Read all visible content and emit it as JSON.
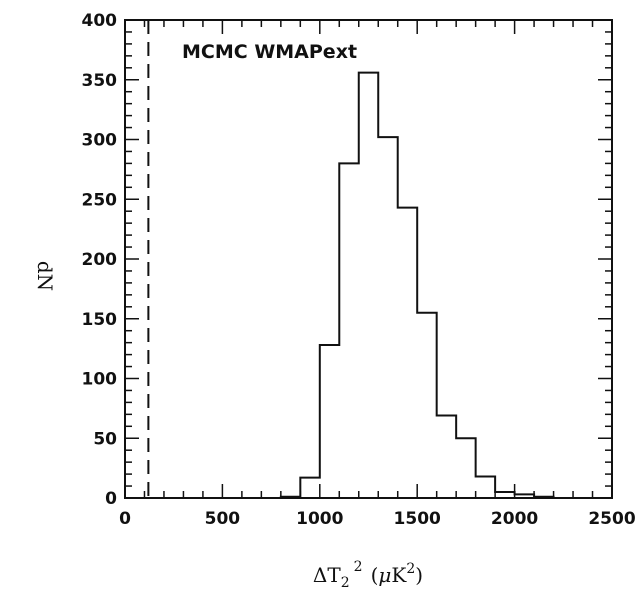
{
  "chart_data": {
    "type": "histogram",
    "title": "",
    "annotation": "MCMC WMAPext",
    "xlabel_main": "ΔT",
    "xlabel_sub": "2",
    "xlabel_sup": "2",
    "xlabel_unit_open": "(",
    "xlabel_unit_mu": "μ",
    "xlabel_unit_K": "K",
    "xlabel_unit_sup": "2",
    "xlabel_unit_close": ")",
    "ylabel": "dN",
    "xlim": [
      0,
      2500
    ],
    "ylim": [
      0,
      400
    ],
    "xticks": [
      0,
      500,
      1000,
      1500,
      2000,
      2500
    ],
    "yticks": [
      0,
      50,
      100,
      150,
      200,
      250,
      300,
      350,
      400
    ],
    "bin_width": 100,
    "bin_starts": [
      0,
      100,
      200,
      300,
      400,
      500,
      600,
      700,
      800,
      900,
      1000,
      1100,
      1200,
      1300,
      1400,
      1500,
      1600,
      1700,
      1800,
      1900,
      2000,
      2100,
      2200,
      2300,
      2400
    ],
    "counts": [
      0,
      0,
      0,
      0,
      0,
      0,
      0,
      0,
      1,
      17,
      128,
      280,
      356,
      302,
      243,
      155,
      69,
      50,
      18,
      5,
      3,
      1,
      0,
      0,
      0
    ],
    "reference_line_x": 120,
    "grid": false,
    "legend": "none"
  }
}
